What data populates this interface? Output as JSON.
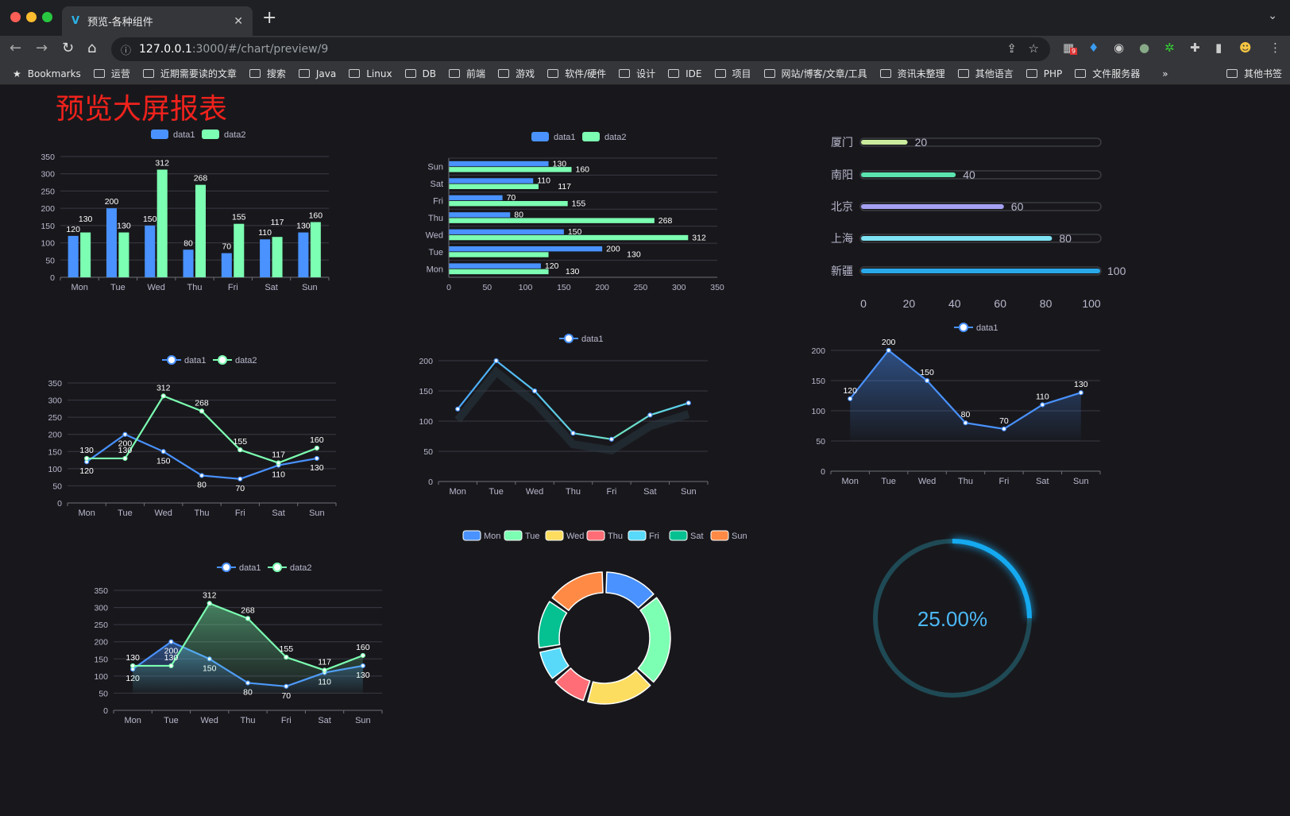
{
  "browser": {
    "tab_title": "预览-各种组件",
    "url_host": "127.0.0.1",
    "url_path": ":3000/#/chart/preview/9",
    "extension_badge": "9",
    "bookmarks": [
      "Bookmarks",
      "运营",
      "近期需要读的文章",
      "搜索",
      "Java",
      "Linux",
      "DB",
      "前端",
      "游戏",
      "软件/硬件",
      "设计",
      "IDE",
      "项目",
      "网站/博客/文章/工具",
      "资讯未整理",
      "其他语言",
      "PHP",
      "文件服务器"
    ],
    "bookmarks_more": "»",
    "other_bookmarks": "其他书签"
  },
  "page": {
    "title": "预览大屏报表"
  },
  "colors": {
    "data1": "#4992ff",
    "data2": "#7cffb2",
    "axis_text": "#b9b8ce",
    "grid": "#3a3944",
    "pie": [
      "#4992ff",
      "#7cffb2",
      "#fddd60",
      "#ff6e76",
      "#58d9f9",
      "#05c091",
      "#ff8a45"
    ],
    "progress": [
      "#c9ec9c",
      "#5be3b0",
      "#a4a0f2",
      "#7ee2f2",
      "#2aa9ea"
    ],
    "gauge": "#15a9f0",
    "gauge_track": "#1f4a55"
  },
  "chart_data": [
    {
      "type": "bar",
      "orientation": "vertical",
      "categories": [
        "Mon",
        "Tue",
        "Wed",
        "Thu",
        "Fri",
        "Sat",
        "Sun"
      ],
      "ylim": [
        0,
        350
      ],
      "ystep": 50,
      "series": [
        {
          "name": "data1",
          "values": [
            120,
            200,
            150,
            80,
            70,
            110,
            130
          ]
        },
        {
          "name": "data2",
          "values": [
            130,
            130,
            312,
            268,
            155,
            117,
            160
          ]
        }
      ],
      "legend": "top"
    },
    {
      "type": "bar",
      "orientation": "horizontal",
      "categories": [
        "Mon",
        "Tue",
        "Wed",
        "Thu",
        "Fri",
        "Sat",
        "Sun"
      ],
      "xlim": [
        0,
        350
      ],
      "xstep": 50,
      "series": [
        {
          "name": "data1",
          "values": [
            120,
            200,
            150,
            80,
            70,
            110,
            130
          ]
        },
        {
          "name": "data2",
          "values": [
            130,
            130,
            312,
            268,
            155,
            117,
            160
          ]
        }
      ],
      "legend": "top"
    },
    {
      "type": "bar",
      "orientation": "horizontal-progress",
      "categories": [
        "厦门",
        "南阳",
        "北京",
        "上海",
        "新疆"
      ],
      "values": [
        20,
        40,
        60,
        80,
        100
      ],
      "xlim": [
        0,
        100
      ],
      "xticks": [
        "0",
        "20",
        "40",
        "60",
        "80",
        "100"
      ]
    },
    {
      "type": "line",
      "categories": [
        "Mon",
        "Tue",
        "Wed",
        "Thu",
        "Fri",
        "Sat",
        "Sun"
      ],
      "ylim": [
        0,
        350
      ],
      "ystep": 50,
      "series": [
        {
          "name": "data1",
          "values": [
            120,
            200,
            150,
            80,
            70,
            110,
            130
          ]
        },
        {
          "name": "data2",
          "values": [
            130,
            130,
            312,
            268,
            155,
            117,
            160
          ]
        }
      ],
      "labels": true,
      "legend": "top"
    },
    {
      "type": "line",
      "categories": [
        "Mon",
        "Tue",
        "Wed",
        "Thu",
        "Fri",
        "Sat",
        "Sun"
      ],
      "ylim": [
        0,
        200
      ],
      "ystep": 50,
      "series": [
        {
          "name": "data1",
          "values": [
            120,
            200,
            150,
            80,
            70,
            110,
            130
          ]
        }
      ],
      "labels": false,
      "legend": "top"
    },
    {
      "type": "area",
      "categories": [
        "Mon",
        "Tue",
        "Wed",
        "Thu",
        "Fri",
        "Sat",
        "Sun"
      ],
      "ylim": [
        0,
        200
      ],
      "ystep": 50,
      "series": [
        {
          "name": "data1",
          "values": [
            120,
            200,
            150,
            80,
            70,
            110,
            130
          ]
        }
      ],
      "labels": true,
      "legend": "top"
    },
    {
      "type": "area",
      "categories": [
        "Mon",
        "Tue",
        "Wed",
        "Thu",
        "Fri",
        "Sat",
        "Sun"
      ],
      "ylim": [
        0,
        350
      ],
      "ystep": 50,
      "series": [
        {
          "name": "data1",
          "values": [
            120,
            200,
            150,
            80,
            70,
            110,
            130
          ]
        },
        {
          "name": "data2",
          "values": [
            130,
            130,
            312,
            268,
            155,
            117,
            160
          ]
        }
      ],
      "labels": true,
      "legend": "top"
    },
    {
      "type": "pie",
      "donut": true,
      "categories": [
        "Mon",
        "Tue",
        "Wed",
        "Thu",
        "Fri",
        "Sat",
        "Sun"
      ],
      "values": [
        120,
        200,
        150,
        80,
        70,
        110,
        130
      ],
      "legend": "top"
    },
    {
      "type": "gauge",
      "value": 25,
      "label": "25.00%"
    }
  ]
}
